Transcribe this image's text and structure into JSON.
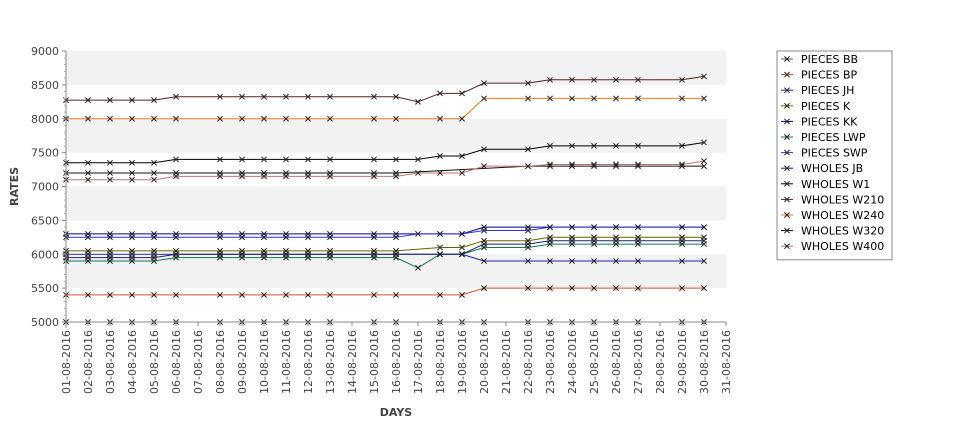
{
  "chart_data": {
    "type": "line",
    "title": "",
    "xlabel": "DAYS",
    "ylabel": "RATES",
    "ylim": [
      5000,
      9000
    ],
    "y_ticks": [
      5000,
      5500,
      6000,
      6500,
      7000,
      7500,
      8000,
      8500,
      9000
    ],
    "grid": "alternating horizontal bands",
    "legend_position": "right",
    "categories": [
      "01-08-2016",
      "02-08-2016",
      "03-08-2016",
      "04-08-2016",
      "05-08-2016",
      "06-08-2016",
      "07-08-2016",
      "08-08-2016",
      "09-08-2016",
      "10-08-2016",
      "11-08-2016",
      "12-08-2016",
      "13-08-2016",
      "14-08-2016",
      "15-08-2016",
      "16-08-2016",
      "17-08-2016",
      "18-08-2016",
      "19-08-2016",
      "20-08-2016",
      "21-08-2016",
      "22-08-2016",
      "23-08-2016",
      "24-08-2016",
      "25-08-2016",
      "26-08-2016",
      "27-08-2016",
      "28-08-2016",
      "29-08-2016",
      "30-08-2016",
      "31-08-2016"
    ],
    "series": [
      {
        "name": "PIECES BB",
        "color": "#555555",
        "values": [
          5000,
          5000,
          5000,
          5000,
          5000,
          5000,
          null,
          5000,
          5000,
          5000,
          5000,
          5000,
          5000,
          null,
          5000,
          5000,
          null,
          5000,
          5000,
          5000,
          null,
          5000,
          5000,
          5000,
          5000,
          5000,
          5000,
          null,
          5000,
          5000,
          null
        ]
      },
      {
        "name": "PIECES BP",
        "color": "#cc5533",
        "values": [
          5400,
          5400,
          5400,
          5400,
          5400,
          5400,
          null,
          5400,
          5400,
          5400,
          5400,
          5400,
          5400,
          null,
          5400,
          5400,
          null,
          5400,
          5400,
          5500,
          null,
          5500,
          5500,
          5500,
          5500,
          5500,
          5500,
          null,
          5500,
          5500,
          null
        ]
      },
      {
        "name": "PIECES JH",
        "color": "#2222aa",
        "values": [
          6000,
          6000,
          6000,
          6000,
          6000,
          6000,
          null,
          6000,
          6000,
          6000,
          6000,
          6000,
          6000,
          null,
          6000,
          6000,
          null,
          6000,
          6000,
          5900,
          null,
          5900,
          5900,
          5900,
          5900,
          5900,
          5900,
          null,
          5900,
          5900,
          null
        ]
      },
      {
        "name": "PIECES K",
        "color": "#666600",
        "values": [
          6050,
          6050,
          6050,
          6050,
          6050,
          6050,
          null,
          6050,
          6050,
          6050,
          6050,
          6050,
          6050,
          null,
          6050,
          6050,
          null,
          6100,
          6100,
          6200,
          null,
          6200,
          6250,
          6250,
          6250,
          6250,
          6250,
          null,
          6250,
          6250,
          null
        ]
      },
      {
        "name": "PIECES KK",
        "color": "#000088",
        "values": [
          6300,
          6300,
          6300,
          6300,
          6300,
          6300,
          null,
          6300,
          6300,
          6300,
          6300,
          6300,
          6300,
          null,
          6300,
          6300,
          null,
          6300,
          6300,
          6400,
          null,
          6400,
          6400,
          6400,
          6400,
          6400,
          6400,
          null,
          6400,
          6400,
          null
        ]
      },
      {
        "name": "PIECES LWP",
        "color": "#117755",
        "values": [
          5900,
          5900,
          5900,
          5900,
          5900,
          5950,
          null,
          5950,
          5950,
          5950,
          5950,
          5950,
          5950,
          null,
          5950,
          5950,
          5800,
          6000,
          6000,
          6100,
          null,
          6100,
          6150,
          6150,
          6150,
          6150,
          6150,
          null,
          6150,
          6150,
          null
        ]
      },
      {
        "name": "PIECES SWP",
        "color": "#3333cc",
        "values": [
          6250,
          6250,
          6250,
          6250,
          6250,
          6250,
          null,
          6250,
          6250,
          6250,
          6250,
          6250,
          6250,
          null,
          6250,
          6250,
          6300,
          6300,
          6300,
          6350,
          null,
          6350,
          6400,
          6400,
          6400,
          6400,
          6400,
          null,
          6400,
          6400,
          null
        ]
      },
      {
        "name": "WHOLES JB",
        "color": "#222266",
        "values": [
          5950,
          5950,
          5950,
          5950,
          5950,
          6000,
          null,
          6000,
          6000,
          6000,
          6000,
          6000,
          6000,
          null,
          6000,
          6000,
          null,
          6000,
          6000,
          6150,
          null,
          6150,
          6200,
          6200,
          6200,
          6200,
          6200,
          null,
          6200,
          6200,
          null
        ]
      },
      {
        "name": "WHOLES W1",
        "color": "#000000",
        "values": [
          7350,
          7350,
          7350,
          7350,
          7350,
          7400,
          null,
          7400,
          7400,
          7400,
          7400,
          7400,
          7400,
          null,
          7400,
          7400,
          7400,
          7450,
          7450,
          7550,
          null,
          7550,
          7600,
          7600,
          7600,
          7600,
          7600,
          null,
          7600,
          7650,
          null
        ]
      },
      {
        "name": "WHOLES W210",
        "color": "#552222",
        "values": [
          8275,
          8275,
          8275,
          8275,
          8275,
          8325,
          null,
          8325,
          8325,
          8325,
          8325,
          8325,
          8325,
          null,
          8325,
          8325,
          8250,
          8375,
          8375,
          8525,
          null,
          8525,
          8575,
          8575,
          8575,
          8575,
          8575,
          null,
          8575,
          8625,
          null
        ]
      },
      {
        "name": "WHOLES W240",
        "color": "#e07b20",
        "values": [
          8000,
          8000,
          8000,
          8000,
          8000,
          8000,
          null,
          8000,
          8000,
          8000,
          8000,
          8000,
          8000,
          null,
          8000,
          8000,
          null,
          8000,
          8000,
          8300,
          null,
          8300,
          8300,
          8300,
          8300,
          8300,
          8300,
          null,
          8300,
          8300,
          null
        ]
      },
      {
        "name": "WHOLES W320",
        "color": "#111111",
        "values": [
          7200,
          7200,
          7200,
          7200,
          7200,
          7200,
          null,
          7200,
          7200,
          7200,
          7200,
          7200,
          7200,
          null,
          7200,
          7200,
          null,
          null,
          null,
          null,
          null,
          7300,
          7300,
          7300,
          7300,
          7300,
          7300,
          null,
          7300,
          7300,
          null
        ]
      },
      {
        "name": "WHOLES W400",
        "color": "#bb7777",
        "values": [
          7100,
          7100,
          7100,
          7100,
          7100,
          7150,
          null,
          7150,
          7150,
          7150,
          7150,
          7150,
          7150,
          null,
          7150,
          7150,
          7200,
          7200,
          7200,
          7300,
          null,
          7300,
          7325,
          7325,
          7325,
          7325,
          7325,
          null,
          7325,
          7375,
          null
        ]
      }
    ]
  }
}
